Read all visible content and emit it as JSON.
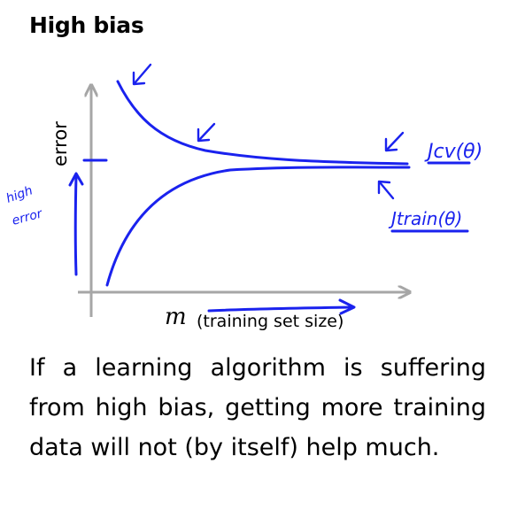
{
  "title": "High bias",
  "plot": {
    "y_axis_label": "error",
    "x_axis_symbol": "m",
    "x_axis_label": "(training set size)"
  },
  "annotations": {
    "cv_curve": "Jcv(θ)",
    "train_curve": "Jtrain(θ)",
    "high_error_line1": "high",
    "high_error_line2": "error"
  },
  "caption": "If a learning algorithm is suffering from high bias, getting more training data will not (by itself) help much.",
  "colors": {
    "ink": "#1a22ee",
    "axis": "#a6a6a6"
  }
}
